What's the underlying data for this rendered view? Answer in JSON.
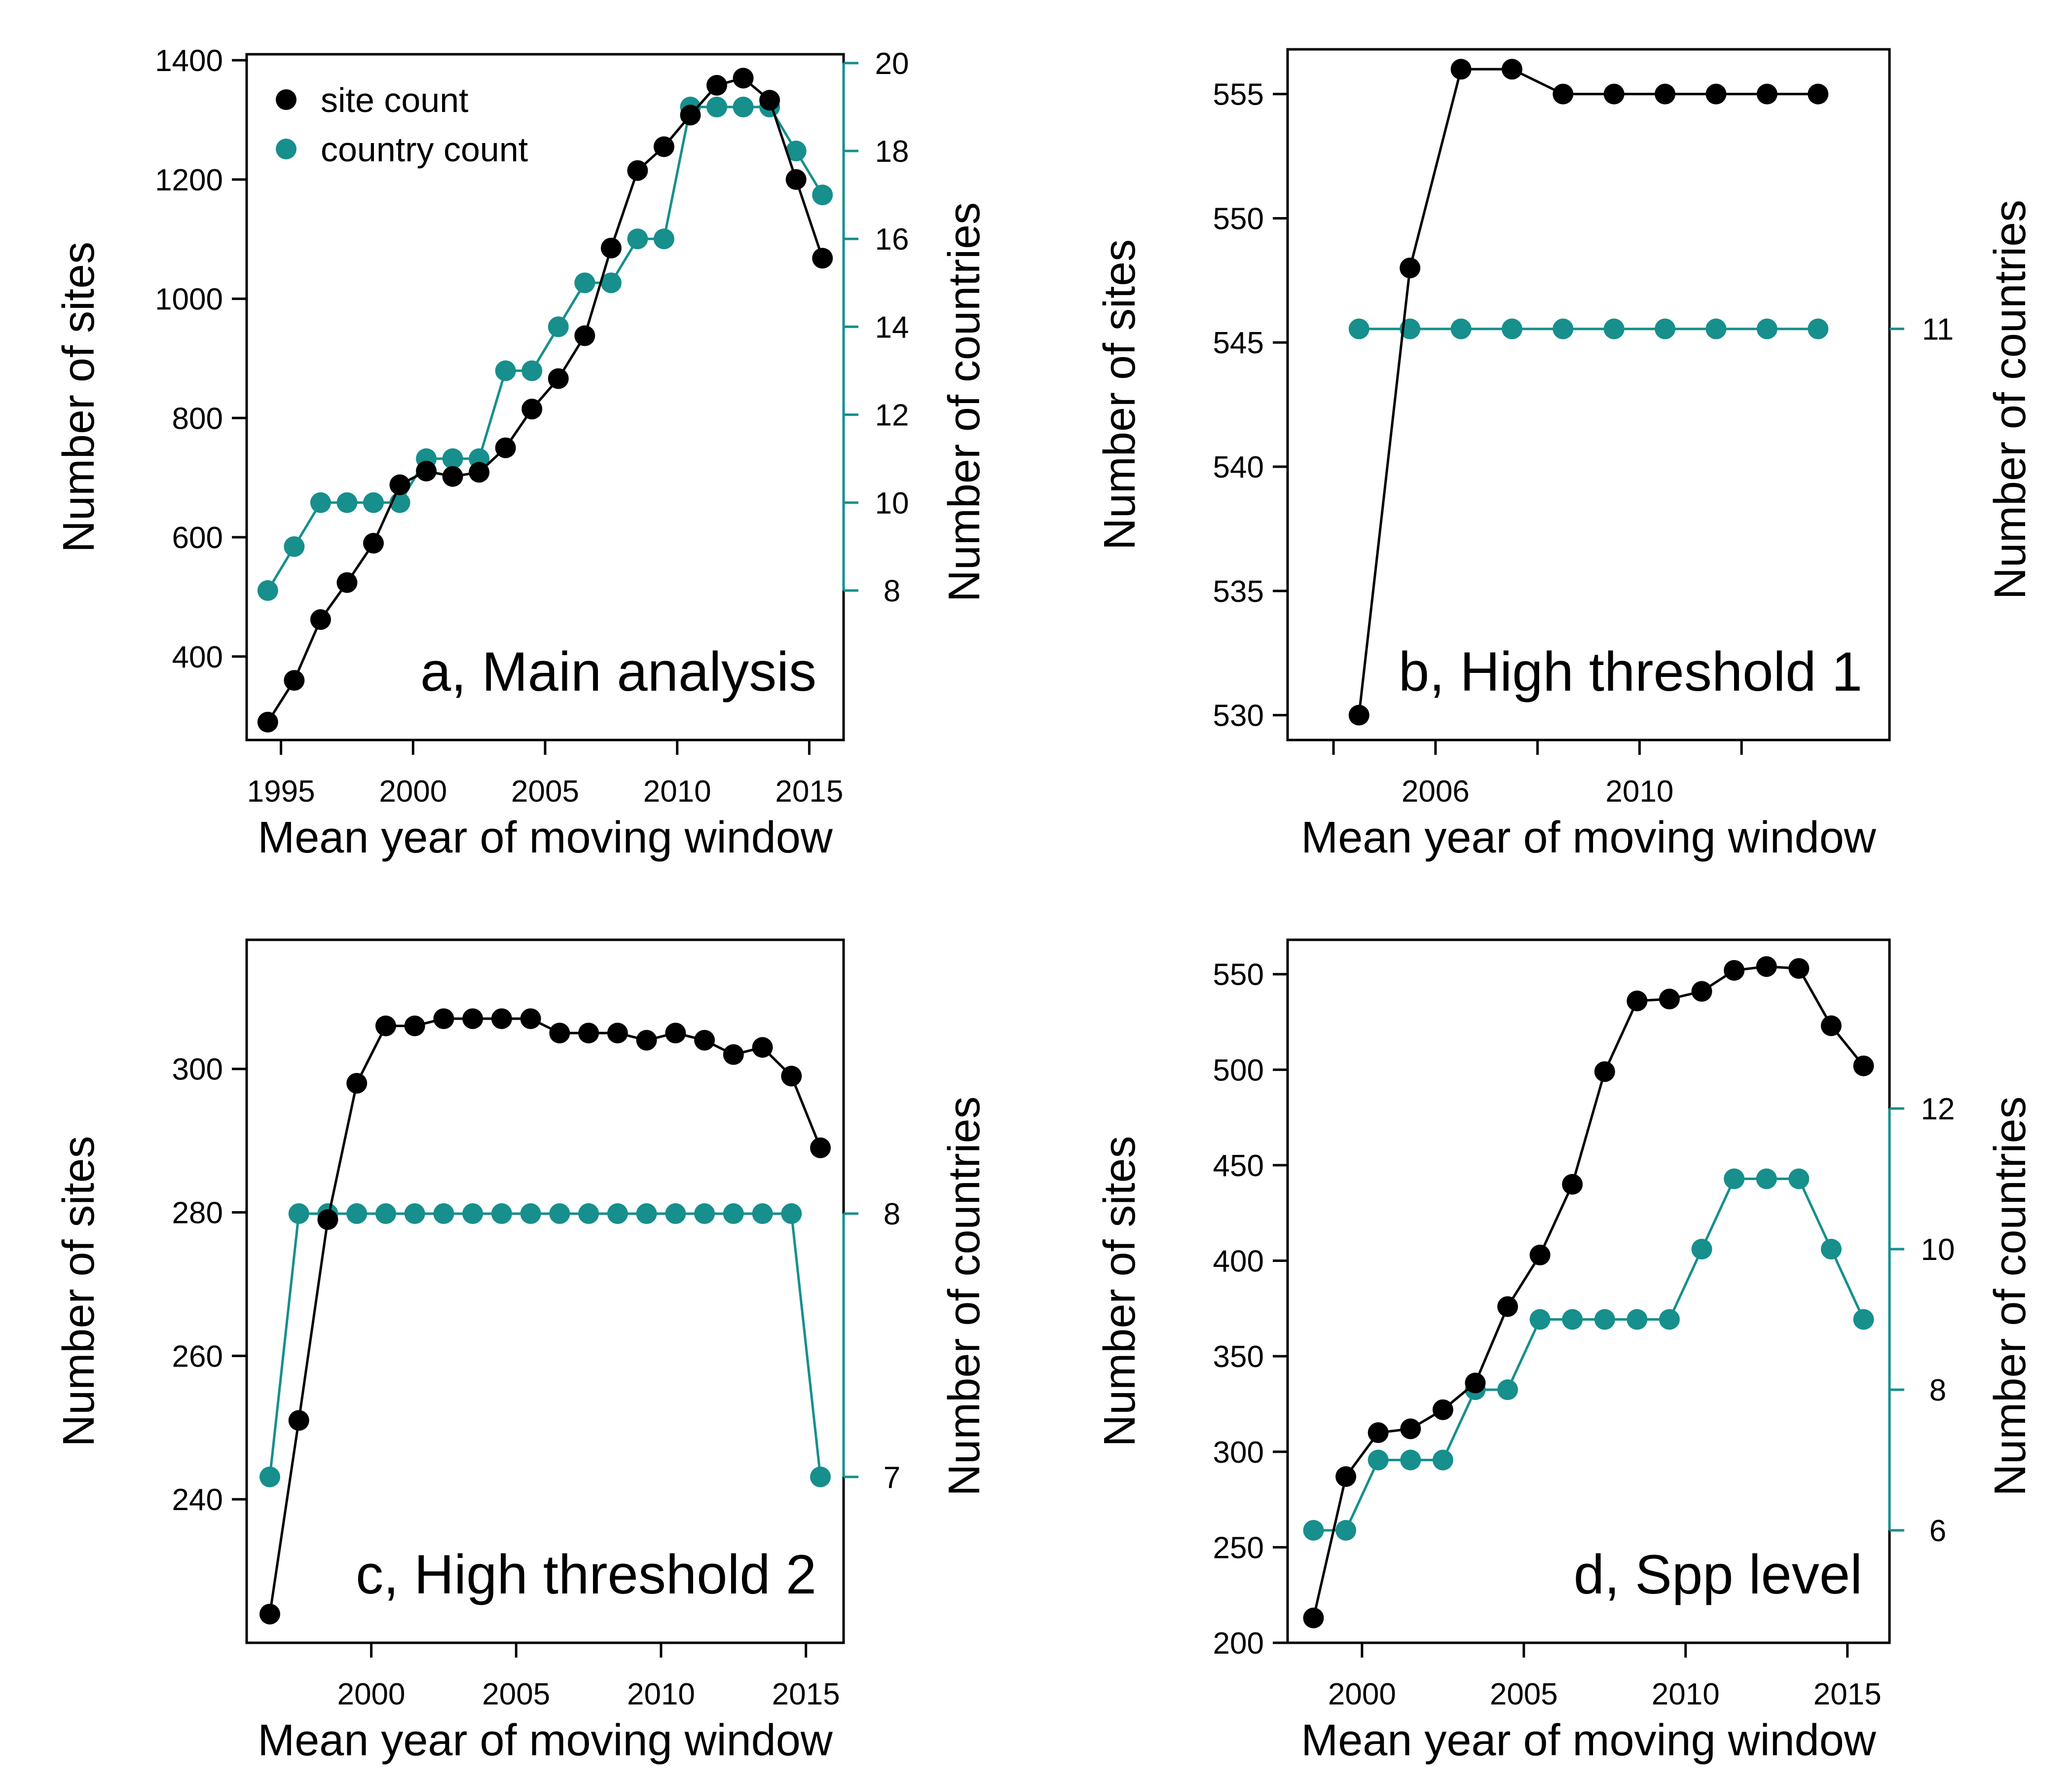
{
  "colors": {
    "site": "#000000",
    "country": "#168f8d"
  },
  "chart_data": [
    {
      "type": "line",
      "panel": "a",
      "label": "a, Main analysis",
      "xlabel": "Mean year of moving window",
      "ylabel": "Number of sites",
      "y2label": "Number of countries",
      "xlim": [
        1993.7,
        2016.3
      ],
      "ylim": [
        260,
        1410
      ],
      "y2lim": [
        4.6,
        20.2
      ],
      "xticks": [
        1995,
        2000,
        2005,
        2010,
        2015
      ],
      "yticks": [
        400,
        600,
        800,
        1000,
        1200,
        1400
      ],
      "y2ticks": [
        8,
        10,
        12,
        14,
        16,
        18,
        20
      ],
      "legend": {
        "position": "top-left",
        "entries": [
          "site count",
          "country count"
        ]
      },
      "x": [
        1994.5,
        1995.5,
        1996.5,
        1997.5,
        1998.5,
        1999.5,
        2000.5,
        2001.5,
        2002.5,
        2003.5,
        2004.5,
        2005.5,
        2006.5,
        2007.5,
        2008.5,
        2009.5,
        2010.5,
        2011.5,
        2012.5,
        2013.5,
        2014.5,
        2015.5
      ],
      "series": [
        {
          "name": "site count",
          "axis": "left",
          "values": [
            290,
            360,
            462,
            524,
            590,
            688,
            711,
            702,
            709,
            750,
            815,
            866,
            938,
            1085,
            1215,
            1255,
            1308,
            1358,
            1370,
            1333,
            1200,
            1068
          ]
        },
        {
          "name": "country count",
          "axis": "right",
          "values": [
            8,
            9,
            10,
            10,
            10,
            10,
            11,
            11,
            11,
            13,
            13,
            14,
            15,
            15,
            16,
            16,
            19,
            19,
            19,
            19,
            18,
            17
          ]
        }
      ]
    },
    {
      "type": "line",
      "panel": "b",
      "label": "b, High threshold 1",
      "xlabel": "Mean year of moving window",
      "ylabel": "Number of sites",
      "y2label": "Number of countries",
      "xlim": [
        2003.1,
        2014.9
      ],
      "ylim": [
        529,
        556.8
      ],
      "y2lim": [
        8.5,
        12.7
      ],
      "xticks": [
        2006,
        2010
      ],
      "xminorticks": [
        2004,
        2008,
        2012
      ],
      "yticks": [
        530,
        535,
        540,
        545,
        550,
        555
      ],
      "y2ticks": [
        11
      ],
      "x": [
        2004.5,
        2005.5,
        2006.5,
        2007.5,
        2008.5,
        2009.5,
        2010.5,
        2011.5,
        2012.5,
        2013.5
      ],
      "series": [
        {
          "name": "site count",
          "axis": "left",
          "values": [
            530,
            548,
            556,
            556,
            555,
            555,
            555,
            555,
            555,
            555
          ]
        },
        {
          "name": "country count",
          "axis": "right",
          "values": [
            11,
            11,
            11,
            11,
            11,
            11,
            11,
            11,
            11,
            11
          ]
        }
      ]
    },
    {
      "type": "line",
      "panel": "c",
      "label": "c, High threshold 2",
      "xlabel": "Mean year of moving window",
      "ylabel": "Number of sites",
      "y2label": "Number of countries",
      "xlim": [
        1995.7,
        2016.3
      ],
      "ylim": [
        220,
        318
      ],
      "y2lim": [
        6.37,
        9.04
      ],
      "xticks": [
        2000,
        2005,
        2010,
        2015
      ],
      "yticks": [
        240,
        260,
        280,
        300
      ],
      "y2ticks": [
        7,
        8
      ],
      "x": [
        1996.5,
        1997.5,
        1998.5,
        1999.5,
        2000.5,
        2001.5,
        2002.5,
        2003.5,
        2004.5,
        2005.5,
        2006.5,
        2007.5,
        2008.5,
        2009.5,
        2010.5,
        2011.5,
        2012.5,
        2013.5,
        2014.5,
        2015.5
      ],
      "series": [
        {
          "name": "site count",
          "axis": "left",
          "values": [
            224,
            251,
            279,
            298,
            306,
            306,
            307,
            307,
            307,
            307,
            305,
            305,
            305,
            304,
            305,
            304,
            302,
            303,
            299,
            289
          ]
        },
        {
          "name": "country count",
          "axis": "right",
          "values": [
            7,
            8,
            8,
            8,
            8,
            8,
            8,
            8,
            8,
            8,
            8,
            8,
            8,
            8,
            8,
            8,
            8,
            8,
            8,
            7
          ]
        }
      ]
    },
    {
      "type": "line",
      "panel": "d",
      "label": "d, Spp level",
      "xlabel": "Mean year of moving window",
      "ylabel": "Number of sites",
      "y2label": "Number of countries",
      "xlim": [
        1997.7,
        2016.3
      ],
      "ylim": [
        200,
        568
      ],
      "y2lim": [
        4.4,
        14.4
      ],
      "xticks": [
        2000,
        2005,
        2010,
        2015
      ],
      "yticks": [
        200,
        250,
        300,
        350,
        400,
        450,
        500,
        550
      ],
      "y2ticks": [
        6,
        8,
        10,
        12
      ],
      "x": [
        1998.5,
        1999.5,
        2000.5,
        2001.5,
        2002.5,
        2003.5,
        2004.5,
        2005.5,
        2006.5,
        2007.5,
        2008.5,
        2009.5,
        2010.5,
        2011.5,
        2012.5,
        2013.5,
        2014.5,
        2015.5
      ],
      "series": [
        {
          "name": "site count",
          "axis": "left",
          "values": [
            213,
            287,
            310,
            312,
            322,
            336,
            376,
            403,
            440,
            499,
            536,
            537,
            541,
            552,
            554,
            553,
            523,
            502
          ]
        },
        {
          "name": "country count",
          "axis": "right",
          "values": [
            6,
            6,
            7,
            7,
            7,
            8,
            8,
            9,
            9,
            9,
            9,
            9,
            10,
            11,
            11,
            11,
            10,
            9
          ]
        }
      ]
    }
  ]
}
